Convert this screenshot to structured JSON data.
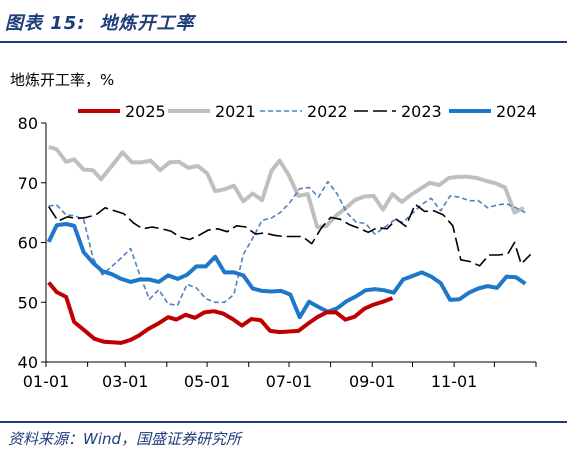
{
  "header": {
    "figure_label": "图表 15:",
    "title": "地炼开工率"
  },
  "source": "资料来源：Wind，国盛证券研究所",
  "chart_data": {
    "type": "line",
    "title": "地炼开工率",
    "ylabel": "地炼开工率，%",
    "xlabel": "",
    "ylim": [
      40,
      80
    ],
    "yticks": [
      "40",
      "50",
      "60",
      "70",
      "80"
    ],
    "xlim": [
      1,
      366
    ],
    "x_ticks": [
      {
        "label": "01-01",
        "day": 1
      },
      {
        "label": "03-01",
        "day": 60
      },
      {
        "label": "05-01",
        "day": 121
      },
      {
        "label": "07-01",
        "day": 182
      },
      {
        "label": "09-01",
        "day": 244
      },
      {
        "label": "11-01",
        "day": 305
      }
    ],
    "x_unit": "day of year",
    "grid": false,
    "legend_position": "top",
    "series": [
      {
        "name": "2025",
        "color": "#c00000",
        "style": "solid-thick",
        "points": [
          [
            3,
            53.3
          ],
          [
            9,
            51.7
          ],
          [
            16,
            50.9
          ],
          [
            22,
            46.7
          ],
          [
            29,
            45.4
          ],
          [
            37,
            43.9
          ],
          [
            44,
            43.4
          ],
          [
            50,
            43.3
          ],
          [
            57,
            43.2
          ],
          [
            64,
            43.7
          ],
          [
            70,
            44.4
          ],
          [
            77,
            45.5
          ],
          [
            85,
            46.5
          ],
          [
            92,
            47.5
          ],
          [
            98,
            47.1
          ],
          [
            105,
            47.9
          ],
          [
            112,
            47.4
          ],
          [
            119,
            48.3
          ],
          [
            126,
            48.5
          ],
          [
            133,
            48.1
          ],
          [
            140,
            47.2
          ],
          [
            147,
            46.1
          ],
          [
            154,
            47.2
          ],
          [
            161,
            47.0
          ],
          [
            168,
            45.2
          ],
          [
            175,
            45.0
          ],
          [
            182,
            45.1
          ],
          [
            189,
            45.2
          ],
          [
            196,
            46.4
          ],
          [
            203,
            47.5
          ],
          [
            210,
            48.3
          ],
          [
            217,
            48.3
          ],
          [
            224,
            47.1
          ],
          [
            231,
            47.6
          ],
          [
            238,
            48.9
          ],
          [
            245,
            49.6
          ],
          [
            252,
            50.1
          ],
          [
            259,
            50.7
          ]
        ]
      },
      {
        "name": "2021",
        "color": "#bfbfbf",
        "style": "solid-thick",
        "points": [
          [
            3,
            76.0
          ],
          [
            9,
            75.6
          ],
          [
            16,
            73.5
          ],
          [
            22,
            73.9
          ],
          [
            29,
            72.2
          ],
          [
            36,
            72.1
          ],
          [
            42,
            70.6
          ],
          [
            50,
            72.8
          ],
          [
            58,
            75.1
          ],
          [
            65,
            73.4
          ],
          [
            72,
            73.4
          ],
          [
            79,
            73.7
          ],
          [
            86,
            72.1
          ],
          [
            93,
            73.4
          ],
          [
            100,
            73.5
          ],
          [
            107,
            72.5
          ],
          [
            114,
            72.8
          ],
          [
            121,
            71.6
          ],
          [
            127,
            68.6
          ],
          [
            134,
            68.9
          ],
          [
            141,
            69.5
          ],
          [
            148,
            66.9
          ],
          [
            155,
            68.2
          ],
          [
            162,
            67.1
          ],
          [
            169,
            72.0
          ],
          [
            175,
            73.7
          ],
          [
            182,
            71.2
          ],
          [
            189,
            67.8
          ],
          [
            196,
            68.1
          ],
          [
            203,
            62.6
          ],
          [
            210,
            62.8
          ],
          [
            217,
            64.5
          ],
          [
            224,
            65.7
          ],
          [
            231,
            67.1
          ],
          [
            238,
            67.7
          ],
          [
            245,
            67.8
          ],
          [
            252,
            65.5
          ],
          [
            259,
            68.1
          ],
          [
            266,
            66.8
          ],
          [
            273,
            68.0
          ],
          [
            280,
            69.0
          ],
          [
            287,
            70.0
          ],
          [
            294,
            69.6
          ],
          [
            301,
            70.8
          ],
          [
            308,
            71.0
          ],
          [
            315,
            71.0
          ],
          [
            322,
            70.8
          ],
          [
            329,
            70.3
          ],
          [
            336,
            69.9
          ],
          [
            343,
            69.2
          ],
          [
            350,
            65.0
          ],
          [
            357,
            65.8
          ]
        ]
      },
      {
        "name": "2022",
        "color": "#4f81bd",
        "style": "dashed",
        "points": [
          [
            3,
            66.1
          ],
          [
            9,
            66.3
          ],
          [
            16,
            64.6
          ],
          [
            22,
            64.5
          ],
          [
            29,
            63.9
          ],
          [
            36,
            57.4
          ],
          [
            43,
            54.6
          ],
          [
            50,
            56.0
          ],
          [
            57,
            57.4
          ],
          [
            64,
            59.0
          ],
          [
            71,
            54.5
          ],
          [
            78,
            50.5
          ],
          [
            85,
            52.1
          ],
          [
            92,
            49.7
          ],
          [
            99,
            49.5
          ],
          [
            106,
            53.0
          ],
          [
            113,
            52.4
          ],
          [
            120,
            50.6
          ],
          [
            127,
            50.0
          ],
          [
            134,
            50.0
          ],
          [
            141,
            51.3
          ],
          [
            148,
            58.0
          ],
          [
            155,
            60.7
          ],
          [
            162,
            63.7
          ],
          [
            169,
            64.1
          ],
          [
            176,
            65.1
          ],
          [
            183,
            66.8
          ],
          [
            190,
            69.0
          ],
          [
            197,
            69.2
          ],
          [
            204,
            67.6
          ],
          [
            211,
            70.2
          ],
          [
            218,
            68.1
          ],
          [
            225,
            65.0
          ],
          [
            232,
            63.4
          ],
          [
            239,
            63.2
          ],
          [
            246,
            61.4
          ],
          [
            253,
            62.5
          ],
          [
            260,
            63.7
          ],
          [
            267,
            63.4
          ],
          [
            274,
            64.9
          ],
          [
            281,
            66.4
          ],
          [
            288,
            67.4
          ],
          [
            295,
            65.3
          ],
          [
            302,
            67.8
          ],
          [
            309,
            67.6
          ],
          [
            316,
            67.0
          ],
          [
            323,
            67.0
          ],
          [
            330,
            65.8
          ],
          [
            337,
            66.3
          ],
          [
            344,
            66.5
          ],
          [
            351,
            65.8
          ],
          [
            358,
            65.0
          ]
        ]
      },
      {
        "name": "2023",
        "color": "#000000",
        "style": "long-dash",
        "points": [
          [
            3,
            66.0
          ],
          [
            10,
            63.6
          ],
          [
            17,
            64.3
          ],
          [
            24,
            64.0
          ],
          [
            31,
            64.2
          ],
          [
            38,
            64.6
          ],
          [
            45,
            65.8
          ],
          [
            52,
            65.3
          ],
          [
            59,
            64.8
          ],
          [
            66,
            63.3
          ],
          [
            73,
            62.3
          ],
          [
            80,
            62.6
          ],
          [
            87,
            62.3
          ],
          [
            94,
            61.9
          ],
          [
            101,
            60.9
          ],
          [
            108,
            60.5
          ],
          [
            115,
            61.2
          ],
          [
            122,
            62.1
          ],
          [
            129,
            62.3
          ],
          [
            136,
            61.8
          ],
          [
            143,
            62.8
          ],
          [
            150,
            62.6
          ],
          [
            157,
            61.4
          ],
          [
            164,
            61.6
          ],
          [
            171,
            61.2
          ],
          [
            178,
            61.0
          ],
          [
            185,
            61.0
          ],
          [
            192,
            61.0
          ],
          [
            199,
            59.8
          ],
          [
            206,
            62.4
          ],
          [
            213,
            64.2
          ],
          [
            220,
            63.9
          ],
          [
            227,
            63.0
          ],
          [
            234,
            62.4
          ],
          [
            241,
            61.7
          ],
          [
            248,
            62.5
          ],
          [
            255,
            62.3
          ],
          [
            262,
            63.9
          ],
          [
            269,
            62.7
          ],
          [
            276,
            66.4
          ],
          [
            283,
            65.2
          ],
          [
            290,
            65.3
          ],
          [
            297,
            64.6
          ],
          [
            304,
            62.8
          ],
          [
            310,
            57.1
          ],
          [
            317,
            56.8
          ],
          [
            324,
            56.1
          ],
          [
            331,
            57.9
          ],
          [
            338,
            57.9
          ],
          [
            345,
            58.1
          ],
          [
            350,
            60.0
          ],
          [
            355,
            56.4
          ],
          [
            362,
            58.0
          ]
        ]
      },
      {
        "name": "2024",
        "color": "#1f77c9",
        "style": "solid-thick",
        "points": [
          [
            3,
            60.1
          ],
          [
            9,
            62.9
          ],
          [
            16,
            63.1
          ],
          [
            22,
            62.8
          ],
          [
            29,
            58.4
          ],
          [
            36,
            56.6
          ],
          [
            43,
            55.2
          ],
          [
            50,
            54.7
          ],
          [
            57,
            53.9
          ],
          [
            64,
            53.4
          ],
          [
            71,
            53.8
          ],
          [
            78,
            53.8
          ],
          [
            85,
            53.4
          ],
          [
            92,
            54.5
          ],
          [
            99,
            53.9
          ],
          [
            106,
            54.6
          ],
          [
            113,
            56.0
          ],
          [
            120,
            56.0
          ],
          [
            127,
            57.6
          ],
          [
            134,
            55.0
          ],
          [
            141,
            55.0
          ],
          [
            148,
            54.5
          ],
          [
            155,
            52.3
          ],
          [
            162,
            51.9
          ],
          [
            169,
            51.8
          ],
          [
            176,
            51.9
          ],
          [
            183,
            51.3
          ],
          [
            190,
            47.5
          ],
          [
            197,
            50.1
          ],
          [
            204,
            49.2
          ],
          [
            211,
            48.4
          ],
          [
            218,
            49.0
          ],
          [
            225,
            50.2
          ],
          [
            232,
            51.0
          ],
          [
            239,
            52.0
          ],
          [
            246,
            52.2
          ],
          [
            253,
            52.0
          ],
          [
            260,
            51.6
          ],
          [
            267,
            53.8
          ],
          [
            274,
            54.4
          ],
          [
            281,
            55.0
          ],
          [
            288,
            54.3
          ],
          [
            295,
            53.2
          ],
          [
            302,
            50.4
          ],
          [
            309,
            50.5
          ],
          [
            316,
            51.6
          ],
          [
            323,
            52.3
          ],
          [
            330,
            52.7
          ],
          [
            337,
            52.4
          ],
          [
            344,
            54.3
          ],
          [
            351,
            54.2
          ],
          [
            358,
            53.1
          ]
        ]
      }
    ]
  }
}
